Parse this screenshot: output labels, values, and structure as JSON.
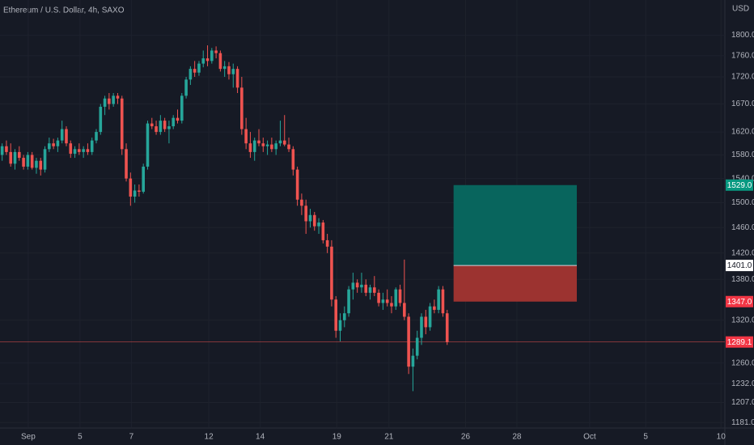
{
  "chart_data": {
    "type": "candlestick",
    "title": "Ethereum / U.S. Dollar, 4h, SAXO",
    "currency": "USD",
    "log_scale": true,
    "grid": true,
    "up_color": "#26a69a",
    "down_color": "#ef5350",
    "ylim": [
      1175,
      1870
    ],
    "yticks": [
      {
        "value": 1800,
        "label": "1800.0"
      },
      {
        "value": 1760,
        "label": "1760.0"
      },
      {
        "value": 1720,
        "label": "1720.0"
      },
      {
        "value": 1670,
        "label": "1670.0"
      },
      {
        "value": 1620,
        "label": "1620.0"
      },
      {
        "value": 1580,
        "label": "1580.0"
      },
      {
        "value": 1540,
        "label": "1540.0"
      },
      {
        "value": 1500,
        "label": "1500.0"
      },
      {
        "value": 1460,
        "label": "1460.0"
      },
      {
        "value": 1420,
        "label": "1420.0"
      },
      {
        "value": 1380,
        "label": "1380.0"
      },
      {
        "value": 1320,
        "label": "1320.0"
      },
      {
        "value": 1260,
        "label": "1260.0"
      },
      {
        "value": 1232,
        "label": "1232.0"
      },
      {
        "value": 1207,
        "label": "1207.0"
      },
      {
        "value": 1181,
        "label": "1181.0"
      }
    ],
    "xlim": [
      0,
      169.4
    ],
    "xticks": [
      {
        "value": 6.6,
        "label": "Sep"
      },
      {
        "value": 18.7,
        "label": "5"
      },
      {
        "value": 30.7,
        "label": "7"
      },
      {
        "value": 48.8,
        "label": "12"
      },
      {
        "value": 60.8,
        "label": "14"
      },
      {
        "value": 78.7,
        "label": "19"
      },
      {
        "value": 90.9,
        "label": "21"
      },
      {
        "value": 108.8,
        "label": "26"
      },
      {
        "value": 120.8,
        "label": "28"
      },
      {
        "value": 137.8,
        "label": "Oct"
      },
      {
        "value": 150.9,
        "label": "5"
      },
      {
        "value": 168.5,
        "label": "10"
      }
    ],
    "open": [
      1580,
      1595,
      1585,
      1565,
      1585,
      1575,
      1560,
      1580,
      1558,
      1570,
      1555,
      1590,
      1600,
      1595,
      1605,
      1625,
      1600,
      1582,
      1590,
      1585,
      1590,
      1585,
      1605,
      1620,
      1665,
      1680,
      1670,
      1685,
      1680,
      1590,
      1540,
      1510,
      1520,
      1518,
      1560,
      1635,
      1630,
      1620,
      1640,
      1625,
      1630,
      1645,
      1640,
      1685,
      1715,
      1735,
      1728,
      1745,
      1755,
      1750,
      1770,
      1765,
      1735,
      1740,
      1725,
      1735,
      1700,
      1625,
      1600,
      1585,
      1605,
      1600,
      1595,
      1598,
      1590,
      1600,
      1605,
      1598,
      1590,
      1555,
      1505,
      1495,
      1470,
      1480,
      1462,
      1468,
      1440,
      1430,
      1350,
      1305,
      1320,
      1330,
      1365,
      1375,
      1368,
      1372,
      1360,
      1368,
      1360,
      1345,
      1350,
      1345,
      1340,
      1365,
      1345,
      1325,
      1255,
      1270,
      1295,
      1325,
      1310,
      1340,
      1335,
      1365,
      1330
    ],
    "high": [
      1600,
      1605,
      1600,
      1590,
      1595,
      1580,
      1585,
      1585,
      1575,
      1575,
      1595,
      1610,
      1608,
      1610,
      1640,
      1630,
      1605,
      1595,
      1600,
      1595,
      1600,
      1610,
      1625,
      1670,
      1685,
      1690,
      1690,
      1690,
      1685,
      1600,
      1550,
      1530,
      1530,
      1565,
      1640,
      1645,
      1640,
      1650,
      1645,
      1640,
      1650,
      1660,
      1690,
      1720,
      1740,
      1750,
      1750,
      1770,
      1780,
      1775,
      1778,
      1770,
      1750,
      1748,
      1745,
      1740,
      1720,
      1645,
      1620,
      1610,
      1625,
      1610,
      1605,
      1610,
      1605,
      1640,
      1650,
      1610,
      1595,
      1560,
      1515,
      1505,
      1490,
      1485,
      1475,
      1472,
      1450,
      1440,
      1355,
      1330,
      1340,
      1370,
      1390,
      1380,
      1390,
      1380,
      1372,
      1385,
      1365,
      1360,
      1365,
      1355,
      1368,
      1372,
      1410,
      1330,
      1280,
      1305,
      1330,
      1335,
      1345,
      1350,
      1370,
      1370,
      1335
    ],
    "low": [
      1570,
      1580,
      1560,
      1555,
      1570,
      1555,
      1555,
      1555,
      1548,
      1545,
      1550,
      1585,
      1590,
      1585,
      1600,
      1595,
      1575,
      1575,
      1580,
      1575,
      1580,
      1580,
      1600,
      1615,
      1650,
      1660,
      1665,
      1670,
      1580,
      1535,
      1495,
      1500,
      1510,
      1515,
      1555,
      1625,
      1615,
      1615,
      1620,
      1600,
      1625,
      1635,
      1635,
      1680,
      1705,
      1720,
      1722,
      1738,
      1740,
      1745,
      1755,
      1730,
      1720,
      1715,
      1700,
      1690,
      1615,
      1590,
      1575,
      1570,
      1595,
      1585,
      1580,
      1585,
      1580,
      1595,
      1595,
      1585,
      1545,
      1495,
      1480,
      1450,
      1460,
      1455,
      1450,
      1435,
      1420,
      1340,
      1295,
      1290,
      1310,
      1325,
      1350,
      1360,
      1360,
      1355,
      1350,
      1355,
      1340,
      1335,
      1340,
      1330,
      1335,
      1340,
      1320,
      1245,
      1222,
      1265,
      1285,
      1300,
      1305,
      1330,
      1330,
      1325,
      1285
    ],
    "close": [
      1595,
      1585,
      1565,
      1585,
      1575,
      1560,
      1580,
      1558,
      1570,
      1555,
      1590,
      1600,
      1595,
      1605,
      1625,
      1600,
      1582,
      1590,
      1585,
      1590,
      1585,
      1605,
      1620,
      1665,
      1680,
      1670,
      1685,
      1680,
      1590,
      1540,
      1510,
      1520,
      1518,
      1560,
      1635,
      1630,
      1620,
      1640,
      1625,
      1630,
      1645,
      1640,
      1685,
      1715,
      1735,
      1728,
      1745,
      1755,
      1750,
      1770,
      1765,
      1735,
      1740,
      1725,
      1735,
      1700,
      1625,
      1600,
      1585,
      1605,
      1600,
      1595,
      1598,
      1590,
      1600,
      1605,
      1598,
      1590,
      1555,
      1505,
      1495,
      1470,
      1480,
      1462,
      1468,
      1440,
      1430,
      1350,
      1305,
      1320,
      1330,
      1365,
      1375,
      1368,
      1372,
      1360,
      1368,
      1360,
      1345,
      1350,
      1345,
      1340,
      1365,
      1345,
      1325,
      1255,
      1270,
      1295,
      1325,
      1310,
      1340,
      1335,
      1365,
      1330,
      1289.1
    ],
    "last_price": 1289.1,
    "position": {
      "start": 106,
      "end": 134.8,
      "target": {
        "value": 1529,
        "label": "1529.0"
      },
      "entry": {
        "value": 1401,
        "label": "1401.0"
      },
      "stop": {
        "value": 1347,
        "label": "1347.0"
      }
    }
  }
}
